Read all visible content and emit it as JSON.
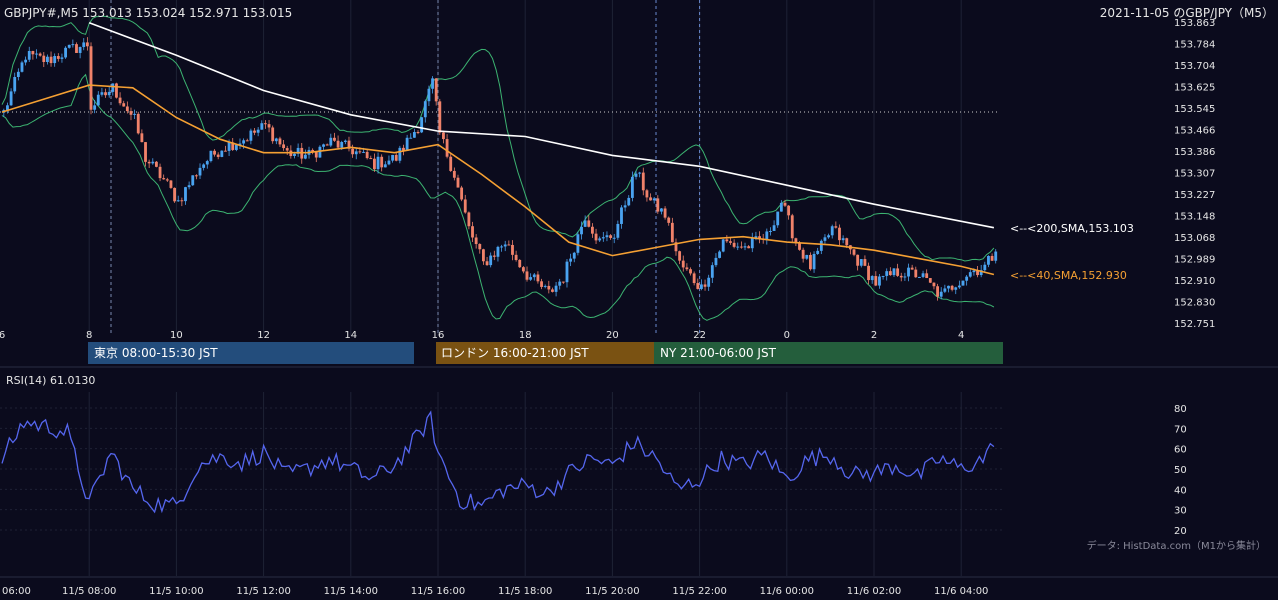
{
  "header": {
    "symbol_line": "GBPJPY#,M5 153.013 153.024 152.971 153.015",
    "date_title": "2021-11-05 のGBP/JPY（M5）"
  },
  "colors": {
    "background": "#0b0b1d",
    "bull": "#4aa3f0",
    "bear": "#f0826a",
    "sma200": "#ffffff",
    "sma40": "#f5a033",
    "bollinger": "#3cb371",
    "rsi": "#5566ee",
    "tokyo": "#234d7c",
    "london": "#7a5212",
    "ny": "#245e3c",
    "grid": "#1f2235"
  },
  "price_axis": {
    "ticks": [
      "153.863",
      "153.784",
      "153.704",
      "153.625",
      "153.545",
      "153.466",
      "153.386",
      "153.307",
      "153.227",
      "153.148",
      "153.068",
      "152.989",
      "152.910",
      "152.830",
      "152.751"
    ],
    "range": [
      152.751,
      153.863
    ]
  },
  "hour_axis": {
    "labels": [
      "6",
      "8",
      "10",
      "12",
      "14",
      "16",
      "18",
      "20",
      "22",
      "0",
      "2",
      "4"
    ]
  },
  "sessions": {
    "tokyo": "東京 08:00-15:30 JST",
    "london": "ロンドン 16:00-21:00 JST",
    "ny": "NY 21:00-06:00 JST"
  },
  "annotations": {
    "sma200": "<--<200,SMA,153.103",
    "sma40": "<--<40,SMA,152.930"
  },
  "rsi": {
    "title": "RSI(14) 61.0130",
    "ticks": [
      "80",
      "70",
      "60",
      "50",
      "40",
      "30",
      "20"
    ]
  },
  "time_axis": {
    "labels": [
      "06:00",
      "11/5 08:00",
      "11/5 10:00",
      "11/5 12:00",
      "11/5 14:00",
      "11/5 16:00",
      "11/5 18:00",
      "11/5 20:00",
      "11/5 22:00",
      "11/6 00:00",
      "11/6 02:00",
      "11/6 04:00"
    ]
  },
  "source": "データ: HistData.com（M1から集計）",
  "chart_data": [
    {
      "type": "candlestick",
      "title": "GBPJPY#,M5",
      "interval": "5 minutes",
      "ylim": [
        152.751,
        153.863
      ],
      "x_range": [
        "2021-11-05 06:00",
        "2021-11-06 04:45"
      ],
      "close_path": [
        {
          "t": "06:00",
          "close": 153.53
        },
        {
          "t": "06:30",
          "close": 153.74
        },
        {
          "t": "07:00",
          "close": 153.72
        },
        {
          "t": "07:30",
          "close": 153.76
        },
        {
          "t": "07:55",
          "close": 153.78
        },
        {
          "t": "08:00",
          "close": 153.55
        },
        {
          "t": "08:30",
          "close": 153.62
        },
        {
          "t": "09:00",
          "close": 153.5
        },
        {
          "t": "09:15",
          "close": 153.36
        },
        {
          "t": "09:40",
          "close": 153.28
        },
        {
          "t": "10:00",
          "close": 153.2
        },
        {
          "t": "10:30",
          "close": 153.33
        },
        {
          "t": "11:00",
          "close": 153.4
        },
        {
          "t": "11:30",
          "close": 153.43
        },
        {
          "t": "12:00",
          "close": 153.48
        },
        {
          "t": "12:30",
          "close": 153.38
        },
        {
          "t": "13:00",
          "close": 153.37
        },
        {
          "t": "13:30",
          "close": 153.42
        },
        {
          "t": "14:00",
          "close": 153.39
        },
        {
          "t": "14:30",
          "close": 153.34
        },
        {
          "t": "15:00",
          "close": 153.36
        },
        {
          "t": "15:30",
          "close": 153.48
        },
        {
          "t": "15:50",
          "close": 153.64
        },
        {
          "t": "16:00",
          "close": 153.45
        },
        {
          "t": "16:20",
          "close": 153.3
        },
        {
          "t": "16:40",
          "close": 153.1
        },
        {
          "t": "17:00",
          "close": 152.97
        },
        {
          "t": "17:30",
          "close": 153.05
        },
        {
          "t": "18:00",
          "close": 152.93
        },
        {
          "t": "18:30",
          "close": 152.86
        },
        {
          "t": "18:50",
          "close": 152.92
        },
        {
          "t": "19:20",
          "close": 153.15
        },
        {
          "t": "19:40",
          "close": 153.05
        },
        {
          "t": "20:00",
          "close": 153.08
        },
        {
          "t": "20:30",
          "close": 153.31
        },
        {
          "t": "20:50",
          "close": 153.2
        },
        {
          "t": "21:10",
          "close": 153.15
        },
        {
          "t": "21:30",
          "close": 152.97
        },
        {
          "t": "22:00",
          "close": 152.88
        },
        {
          "t": "22:30",
          "close": 153.05
        },
        {
          "t": "23:00",
          "close": 153.03
        },
        {
          "t": "23:30",
          "close": 153.07
        },
        {
          "t": "23:50",
          "close": 153.2
        },
        {
          "t": "00:10",
          "close": 153.05
        },
        {
          "t": "00:30",
          "close": 152.96
        },
        {
          "t": "01:00",
          "close": 153.1
        },
        {
          "t": "01:30",
          "close": 153.0
        },
        {
          "t": "02:00",
          "close": 152.9
        },
        {
          "t": "02:30",
          "close": 152.94
        },
        {
          "t": "03:00",
          "close": 152.93
        },
        {
          "t": "03:30",
          "close": 152.85
        },
        {
          "t": "03:50",
          "close": 152.9
        },
        {
          "t": "04:10",
          "close": 152.94
        },
        {
          "t": "04:30",
          "close": 152.96
        },
        {
          "t": "04:45",
          "close": 153.015
        }
      ],
      "last_bar": {
        "open": 153.013,
        "high": 153.024,
        "low": 152.971,
        "close": 153.015
      }
    },
    {
      "type": "line",
      "title": "SMA",
      "series": [
        {
          "name": "200,SMA",
          "last": 153.103,
          "values": [
            {
              "t": "08:00",
              "v": 153.86
            },
            {
              "t": "10:00",
              "v": 153.74
            },
            {
              "t": "12:00",
              "v": 153.61
            },
            {
              "t": "14:00",
              "v": 153.52
            },
            {
              "t": "16:00",
              "v": 153.46
            },
            {
              "t": "18:00",
              "v": 153.44
            },
            {
              "t": "20:00",
              "v": 153.37
            },
            {
              "t": "22:00",
              "v": 153.33
            },
            {
              "t": "00:00",
              "v": 153.26
            },
            {
              "t": "02:00",
              "v": 153.19
            },
            {
              "t": "04:45",
              "v": 153.103
            }
          ]
        },
        {
          "name": "40,SMA",
          "last": 152.93,
          "values": [
            {
              "t": "06:00",
              "v": 153.53
            },
            {
              "t": "07:00",
              "v": 153.58
            },
            {
              "t": "08:00",
              "v": 153.63
            },
            {
              "t": "09:00",
              "v": 153.62
            },
            {
              "t": "10:00",
              "v": 153.51
            },
            {
              "t": "11:00",
              "v": 153.43
            },
            {
              "t": "12:00",
              "v": 153.38
            },
            {
              "t": "13:00",
              "v": 153.38
            },
            {
              "t": "14:00",
              "v": 153.4
            },
            {
              "t": "15:00",
              "v": 153.38
            },
            {
              "t": "16:00",
              "v": 153.41
            },
            {
              "t": "17:00",
              "v": 153.3
            },
            {
              "t": "18:00",
              "v": 153.18
            },
            {
              "t": "19:00",
              "v": 153.05
            },
            {
              "t": "20:00",
              "v": 153.0
            },
            {
              "t": "21:00",
              "v": 153.03
            },
            {
              "t": "22:00",
              "v": 153.06
            },
            {
              "t": "23:00",
              "v": 153.07
            },
            {
              "t": "00:00",
              "v": 153.05
            },
            {
              "t": "01:00",
              "v": 153.04
            },
            {
              "t": "02:00",
              "v": 153.02
            },
            {
              "t": "03:00",
              "v": 152.99
            },
            {
              "t": "04:00",
              "v": 152.96
            },
            {
              "t": "04:45",
              "v": 152.93
            }
          ]
        }
      ]
    },
    {
      "type": "line",
      "title": "RSI(14)",
      "ylim": [
        20,
        80
      ],
      "last": 61.013,
      "values": [
        {
          "t": "06:00",
          "v": 55
        },
        {
          "t": "06:30",
          "v": 73
        },
        {
          "t": "07:00",
          "v": 71
        },
        {
          "t": "07:30",
          "v": 68
        },
        {
          "t": "08:00",
          "v": 33
        },
        {
          "t": "08:30",
          "v": 58
        },
        {
          "t": "09:00",
          "v": 40
        },
        {
          "t": "09:30",
          "v": 33
        },
        {
          "t": "10:00",
          "v": 32
        },
        {
          "t": "10:30",
          "v": 52
        },
        {
          "t": "11:00",
          "v": 56
        },
        {
          "t": "11:30",
          "v": 53
        },
        {
          "t": "12:00",
          "v": 58
        },
        {
          "t": "12:30",
          "v": 47
        },
        {
          "t": "13:00",
          "v": 50
        },
        {
          "t": "13:30",
          "v": 55
        },
        {
          "t": "14:00",
          "v": 50
        },
        {
          "t": "14:30",
          "v": 45
        },
        {
          "t": "15:00",
          "v": 52
        },
        {
          "t": "15:30",
          "v": 65
        },
        {
          "t": "15:50",
          "v": 75
        },
        {
          "t": "16:00",
          "v": 58
        },
        {
          "t": "16:30",
          "v": 35
        },
        {
          "t": "17:00",
          "v": 32
        },
        {
          "t": "17:30",
          "v": 40
        },
        {
          "t": "18:00",
          "v": 42
        },
        {
          "t": "18:30",
          "v": 38
        },
        {
          "t": "19:00",
          "v": 48
        },
        {
          "t": "19:30",
          "v": 55
        },
        {
          "t": "20:00",
          "v": 52
        },
        {
          "t": "20:30",
          "v": 63
        },
        {
          "t": "21:00",
          "v": 55
        },
        {
          "t": "21:30",
          "v": 40
        },
        {
          "t": "22:00",
          "v": 45
        },
        {
          "t": "22:30",
          "v": 55
        },
        {
          "t": "23:00",
          "v": 52
        },
        {
          "t": "23:30",
          "v": 57
        },
        {
          "t": "00:00",
          "v": 45
        },
        {
          "t": "00:30",
          "v": 55
        },
        {
          "t": "01:00",
          "v": 57
        },
        {
          "t": "01:30",
          "v": 47
        },
        {
          "t": "02:00",
          "v": 48
        },
        {
          "t": "02:30",
          "v": 52
        },
        {
          "t": "03:00",
          "v": 46
        },
        {
          "t": "03:30",
          "v": 55
        },
        {
          "t": "04:00",
          "v": 50
        },
        {
          "t": "04:30",
          "v": 55
        },
        {
          "t": "04:45",
          "v": 61.013
        }
      ]
    }
  ]
}
